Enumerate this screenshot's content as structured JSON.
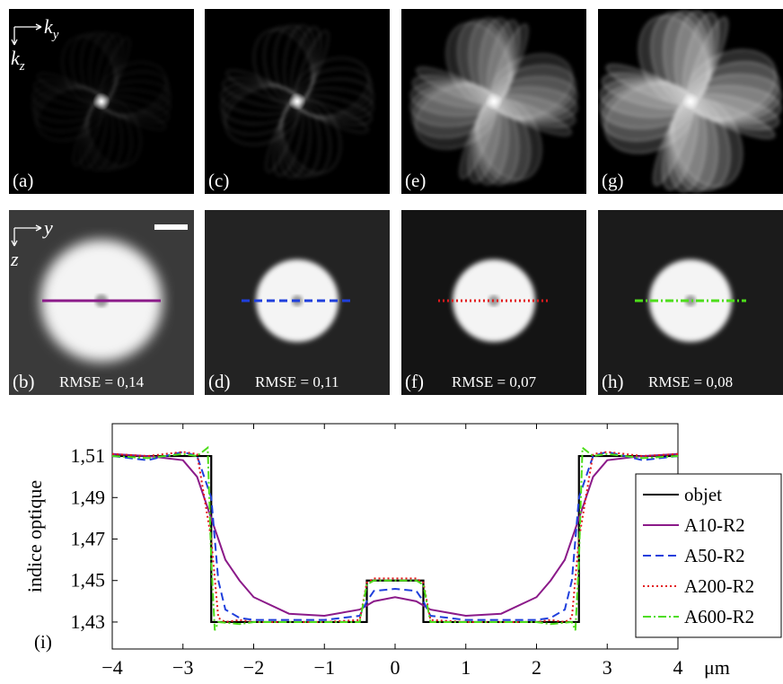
{
  "top_axes": {
    "h": {
      "base": "k",
      "sub": "y"
    },
    "v": {
      "base": "k",
      "sub": "z"
    }
  },
  "bottom_axes": {
    "h": "y",
    "v": "z"
  },
  "top": [
    {
      "label": "(a)"
    },
    {
      "label": "(c)"
    },
    {
      "label": "(e)"
    },
    {
      "label": "(g)"
    }
  ],
  "bottom": [
    {
      "label": "(b)",
      "rmse": "RMSE = 0,14"
    },
    {
      "label": "(d)",
      "rmse": "RMSE = 0,11"
    },
    {
      "label": "(f)",
      "rmse": "RMSE = 0,07"
    },
    {
      "label": "(h)",
      "rmse": "RMSE = 0,08"
    }
  ],
  "chart_data": {
    "type": "line",
    "panel_label": "(i)",
    "ylabel": "indice optique",
    "x_unit": "μm",
    "xlim": [
      -4,
      4
    ],
    "ylim": [
      1.417,
      1.5256
    ],
    "xticks": [
      {
        "value": -4,
        "label": "−4"
      },
      {
        "value": -3,
        "label": "−3"
      },
      {
        "value": -2,
        "label": "−2"
      },
      {
        "value": -1,
        "label": "−1"
      },
      0,
      1,
      2,
      3,
      4
    ],
    "yticks": [
      {
        "value": 1.43,
        "label": "1,43"
      },
      {
        "value": 1.45,
        "label": "1,45"
      },
      {
        "value": 1.47,
        "label": "1,47"
      },
      {
        "value": 1.49,
        "label": "1,49"
      },
      {
        "value": 1.51,
        "label": "1,51"
      }
    ],
    "legend": "lower right",
    "series": [
      {
        "name": "objet",
        "color": "#000000",
        "style": "solid",
        "x": [
          -4,
          -2.6,
          -2.6,
          -0.4,
          -0.4,
          0.4,
          0.4,
          2.6,
          2.6,
          4
        ],
        "values": [
          1.51,
          1.51,
          1.43,
          1.43,
          1.45,
          1.45,
          1.43,
          1.43,
          1.51,
          1.51
        ]
      },
      {
        "name": "A10-R2",
        "color": "#8b1a89",
        "style": "solid",
        "x": [
          -4,
          -3.5,
          -3,
          -2.8,
          -2.6,
          -2.5,
          -2.4,
          -2.2,
          -2,
          -1.5,
          -1,
          -0.5,
          -0.4,
          -0.3,
          0,
          0.3,
          0.4,
          0.5,
          1,
          1.5,
          2,
          2.2,
          2.4,
          2.5,
          2.6,
          2.8,
          3,
          3.5,
          4
        ],
        "values": [
          1.511,
          1.51,
          1.508,
          1.5,
          1.48,
          1.47,
          1.46,
          1.45,
          1.442,
          1.434,
          1.433,
          1.436,
          1.438,
          1.44,
          1.442,
          1.44,
          1.438,
          1.436,
          1.433,
          1.434,
          1.442,
          1.45,
          1.46,
          1.47,
          1.48,
          1.5,
          1.508,
          1.51,
          1.511
        ]
      },
      {
        "name": "A50-R2",
        "color": "#1f3fdc",
        "style": "dashed",
        "x": [
          -4,
          -3.5,
          -3,
          -2.8,
          -2.6,
          -2.5,
          -2.4,
          -2.2,
          -2,
          -1.5,
          -1,
          -0.5,
          -0.4,
          -0.3,
          0,
          0.3,
          0.4,
          0.5,
          1,
          1.5,
          2,
          2.2,
          2.4,
          2.5,
          2.6,
          2.8,
          3,
          3.5,
          4
        ],
        "values": [
          1.51,
          1.508,
          1.512,
          1.51,
          1.49,
          1.45,
          1.436,
          1.432,
          1.431,
          1.431,
          1.431,
          1.433,
          1.44,
          1.445,
          1.446,
          1.445,
          1.44,
          1.433,
          1.431,
          1.431,
          1.431,
          1.432,
          1.436,
          1.45,
          1.49,
          1.51,
          1.512,
          1.508,
          1.51
        ]
      },
      {
        "name": "A200-R2",
        "color": "#e31a1c",
        "style": "dotted",
        "x": [
          -4,
          -3.5,
          -3,
          -2.8,
          -2.6,
          -2.5,
          -2.4,
          -2.2,
          -2,
          -1.5,
          -1,
          -0.5,
          -0.4,
          -0.3,
          0,
          0.3,
          0.4,
          0.5,
          1,
          1.5,
          2,
          2.2,
          2.4,
          2.5,
          2.6,
          2.8,
          3,
          3.5,
          4
        ],
        "values": [
          1.511,
          1.51,
          1.512,
          1.511,
          1.47,
          1.432,
          1.43,
          1.431,
          1.43,
          1.43,
          1.43,
          1.431,
          1.449,
          1.451,
          1.451,
          1.451,
          1.449,
          1.431,
          1.43,
          1.43,
          1.43,
          1.431,
          1.43,
          1.432,
          1.47,
          1.511,
          1.512,
          1.51,
          1.511
        ]
      },
      {
        "name": "A600-R2",
        "color": "#4ddd1a",
        "style": "dashdot",
        "x": [
          -4,
          -3.5,
          -3,
          -2.8,
          -2.65,
          -2.6,
          -2.55,
          -2.5,
          -2.2,
          -2,
          -1.5,
          -1,
          -0.5,
          -0.4,
          -0.3,
          0,
          0.3,
          0.4,
          0.5,
          1,
          1.5,
          2,
          2.2,
          2.5,
          2.55,
          2.6,
          2.65,
          2.8,
          3,
          3.5,
          4
        ],
        "values": [
          1.51,
          1.509,
          1.511,
          1.51,
          1.514,
          1.46,
          1.426,
          1.43,
          1.429,
          1.43,
          1.43,
          1.43,
          1.43,
          1.448,
          1.45,
          1.45,
          1.45,
          1.448,
          1.43,
          1.43,
          1.43,
          1.43,
          1.429,
          1.43,
          1.426,
          1.46,
          1.514,
          1.51,
          1.511,
          1.509,
          1.51
        ]
      }
    ]
  }
}
